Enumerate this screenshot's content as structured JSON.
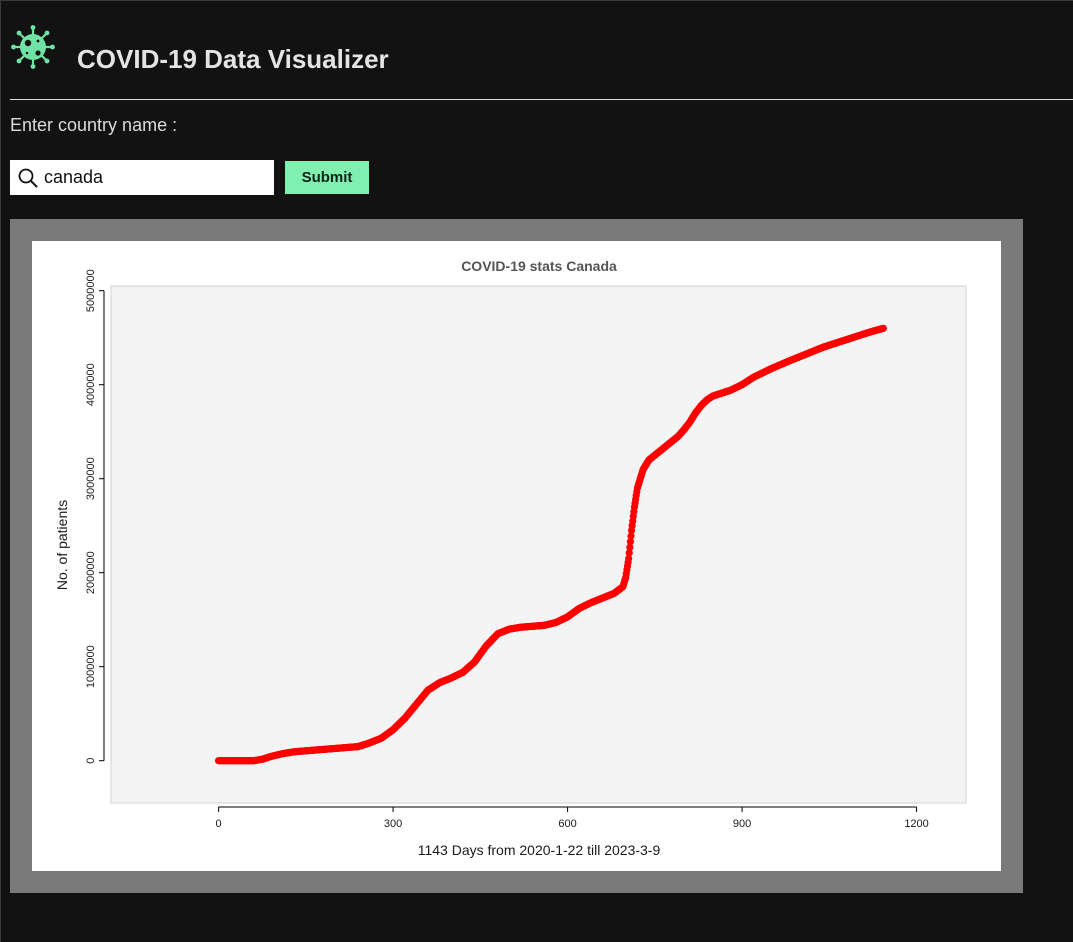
{
  "header": {
    "title": "COVID-19 Data Visualizer",
    "logo_icon": "virus-icon",
    "logo_color": "#6fe3a4"
  },
  "form": {
    "prompt_label": "Enter country name :",
    "search_icon": "search-icon",
    "input_value": "canada",
    "submit_label": "Submit",
    "submit_color": "#7ff0b0"
  },
  "chart_data": {
    "type": "scatter",
    "title": "COVID-19 stats Canada",
    "xlabel": "1143 Days from 2020-1-22 till 2023-3-9",
    "ylabel": "No. of patients",
    "xlim": [
      -185,
      1285
    ],
    "ylim": [
      -450000,
      5050000
    ],
    "xticks": [
      0,
      300,
      600,
      900,
      1200
    ],
    "xtick_labels": [
      "0",
      "300",
      "600",
      "900",
      "1200"
    ],
    "yticks": [
      0,
      1000000,
      2000000,
      3000000,
      4000000,
      5000000
    ],
    "ytick_labels": [
      "0",
      "1000000",
      "2000000",
      "3000000",
      "4000000",
      "5000000"
    ],
    "grid": false,
    "point_color": "#ff0000",
    "panel_background": "#f4f4f4",
    "series": [
      {
        "x": [
          0,
          30,
          60,
          75,
          90,
          110,
          130,
          160,
          200,
          240,
          260,
          280,
          300,
          320,
          340,
          360,
          380,
          400,
          420,
          440,
          460,
          480,
          500,
          520,
          540,
          560,
          580,
          600,
          620,
          640,
          660,
          680,
          695,
          700,
          705,
          710,
          715,
          720,
          725,
          730,
          740,
          750,
          760,
          770,
          780,
          790,
          800,
          810,
          820,
          830,
          840,
          850,
          860,
          880,
          900,
          920,
          950,
          980,
          1000,
          1020,
          1040,
          1060,
          1080,
          1100,
          1120,
          1143
        ],
        "y": [
          0,
          0,
          0,
          15000,
          45000,
          75000,
          95000,
          110000,
          130000,
          150000,
          190000,
          240000,
          330000,
          450000,
          600000,
          750000,
          830000,
          880000,
          940000,
          1050000,
          1220000,
          1350000,
          1400000,
          1420000,
          1430000,
          1440000,
          1470000,
          1530000,
          1620000,
          1680000,
          1730000,
          1780000,
          1850000,
          1950000,
          2150000,
          2450000,
          2700000,
          2900000,
          3000000,
          3100000,
          3200000,
          3250000,
          3300000,
          3350000,
          3400000,
          3450000,
          3520000,
          3600000,
          3700000,
          3780000,
          3840000,
          3880000,
          3900000,
          3940000,
          4000000,
          4080000,
          4170000,
          4250000,
          4300000,
          4350000,
          4400000,
          4440000,
          4480000,
          4520000,
          4560000,
          4600000
        ]
      }
    ]
  }
}
